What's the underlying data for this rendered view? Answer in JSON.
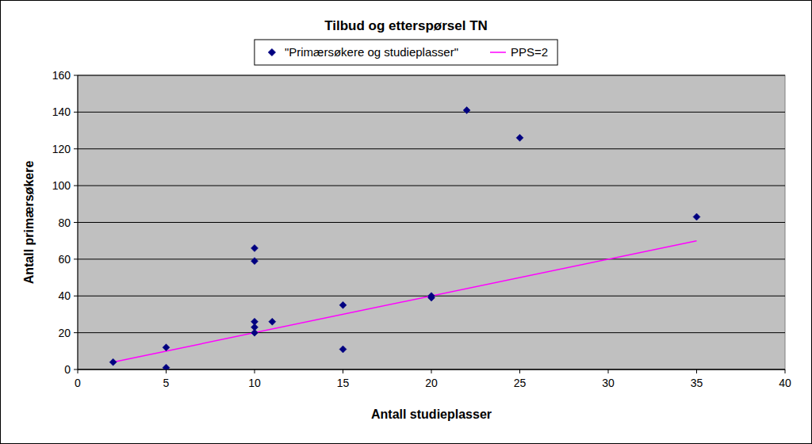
{
  "chart_data": {
    "type": "scatter",
    "title": "Tilbud og etterspørsel TN",
    "x_label": "Antall studieplasser",
    "y_label": "Antall primærsøkere",
    "series": [
      {
        "name": "\"Primærsøkere og studieplasser\"",
        "type": "scatter",
        "color": "#000080",
        "marker": "diamond",
        "x": [
          2,
          5,
          5,
          10,
          10,
          10,
          10,
          10,
          11,
          15,
          15,
          20,
          20,
          22,
          25,
          35
        ],
        "values": [
          4,
          12,
          1,
          66,
          59,
          26,
          23,
          20,
          26,
          35,
          11,
          40,
          39,
          141,
          126,
          83
        ]
      },
      {
        "name": "PPS=2",
        "type": "line",
        "color": "#ff00ff",
        "line_style": "solid",
        "x": [
          2,
          35
        ],
        "values": [
          4,
          70
        ]
      }
    ],
    "xlim": [
      0,
      40
    ],
    "xticks": [
      0,
      5,
      10,
      15,
      20,
      25,
      30,
      35,
      40
    ],
    "ylim": [
      0,
      160
    ],
    "yticks": [
      0,
      20,
      40,
      60,
      80,
      100,
      120,
      140,
      160
    ],
    "grid": true,
    "legend": "top"
  }
}
